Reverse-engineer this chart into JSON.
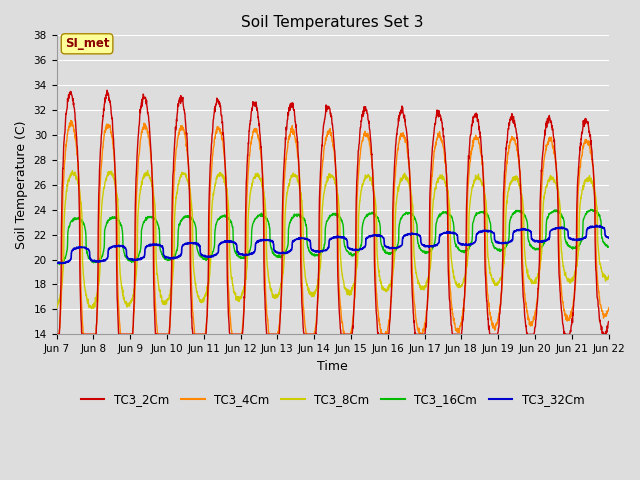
{
  "title": "Soil Temperatures Set 3",
  "xlabel": "Time",
  "ylabel": "Soil Temperature (C)",
  "ylim": [
    14,
    38
  ],
  "yticks": [
    14,
    16,
    18,
    20,
    22,
    24,
    26,
    28,
    30,
    32,
    34,
    36,
    38
  ],
  "bg_color": "#dddddd",
  "plot_bg": "#dddddd",
  "grid_color": "#ffffff",
  "annotation_text": "SI_met",
  "annotation_bg": "#ffff99",
  "annotation_fg": "#8b0000",
  "series": {
    "TC3_2Cm": {
      "color": "#cc0000",
      "lw": 1.0
    },
    "TC3_4Cm": {
      "color": "#ff8800",
      "lw": 1.0
    },
    "TC3_8Cm": {
      "color": "#cccc00",
      "lw": 1.0
    },
    "TC3_16Cm": {
      "color": "#00bb00",
      "lw": 1.0
    },
    "TC3_32Cm": {
      "color": "#0000cc",
      "lw": 1.2
    }
  },
  "xtick_labels": [
    "Jun 7",
    "Jun 8",
    "Jun 9",
    "Jun 10",
    "Jun 11",
    "Jun 12",
    "Jun 13",
    "Jun 14",
    "Jun 15",
    "Jun 16",
    "Jun 17",
    "Jun 18",
    "Jun 19",
    "Jun 20",
    "Jun 21",
    "Jun 22"
  ],
  "n_days": 15,
  "pts_per_day": 144
}
